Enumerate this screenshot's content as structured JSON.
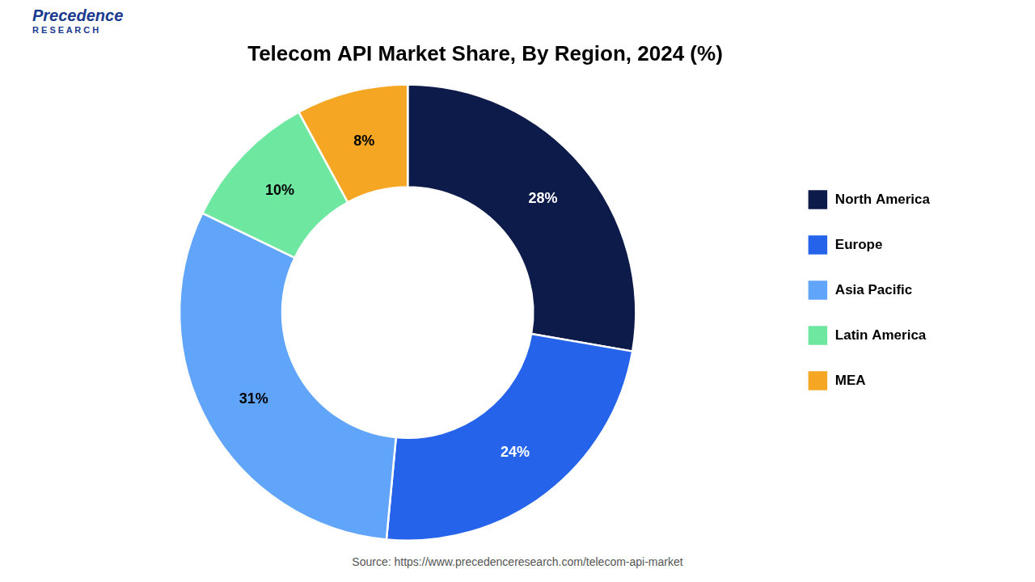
{
  "chart_data": {
    "type": "doughnut",
    "title": "Telecom API Market Share, By Region, 2024 (%)",
    "categories": [
      "North America",
      "Europe",
      "Asia Pacific",
      "Latin America",
      "MEA"
    ],
    "values": [
      28,
      24,
      31,
      10,
      8
    ],
    "value_labels": [
      "28%",
      "24%",
      "31%",
      "10%",
      "8%"
    ],
    "colors": [
      "#0d1b4b",
      "#2563eb",
      "#60a5fa",
      "#6ee7a0",
      "#f5a623"
    ],
    "data_labels": true,
    "legend": "right",
    "annotations": [
      "Precedence",
      "R E S E A R C H",
      "Source: https://www.precedenceresearch.com/telecom-api-market"
    ]
  }
}
